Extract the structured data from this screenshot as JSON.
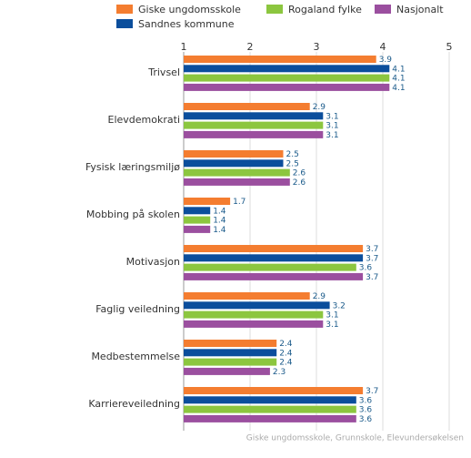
{
  "chart_data": {
    "type": "hbar",
    "categories": [
      "Trivsel",
      "Elevdemokrati",
      "Fysisk læringsmiljø",
      "Mobbing på skolen",
      "Motivasjon",
      "Faglig veiledning",
      "Medbestemmelse",
      "Karriereveiledning"
    ],
    "series": [
      {
        "name": "Giske ungdomsskole",
        "color": "#f47d30",
        "values": [
          3.9,
          2.9,
          2.5,
          1.7,
          3.7,
          2.9,
          2.4,
          3.7
        ]
      },
      {
        "name": "Sandnes kommune",
        "color": "#0b4e9c",
        "values": [
          4.1,
          3.1,
          2.5,
          1.4,
          3.7,
          3.2,
          2.4,
          3.6
        ]
      },
      {
        "name": "Rogaland fylke",
        "color": "#8cc63f",
        "values": [
          4.1,
          3.1,
          2.6,
          1.4,
          3.6,
          3.1,
          2.4,
          3.6
        ]
      },
      {
        "name": "Nasjonalt",
        "color": "#9b4f9f",
        "values": [
          4.1,
          3.1,
          2.6,
          1.4,
          3.7,
          3.1,
          2.3,
          3.6
        ]
      }
    ],
    "xlim": [
      1,
      5
    ],
    "xticks": [
      1,
      2,
      3,
      4,
      5
    ],
    "grid": true,
    "source": "Giske ungdomsskole, Grunnskole, Elevundersøkelsen"
  }
}
